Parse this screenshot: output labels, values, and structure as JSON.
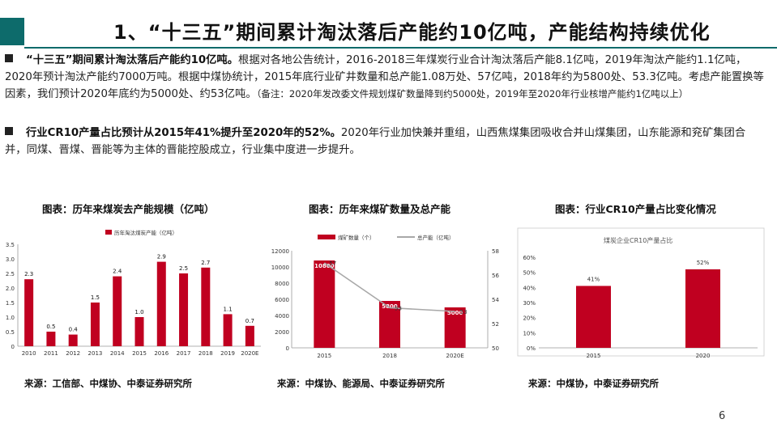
{
  "slide": {
    "title": "1、“十三五”期间累计淘汰落后产能约10亿吨，产能结构持续优化",
    "page_number": "6"
  },
  "paragraphs": [
    {
      "bold": "“十三五”期间累计淘汰落后产能约10亿吨。",
      "text": "根据对各地公告统计，2016-2018三年煤炭行业合计淘汰落后产能8.1亿吨，2019年淘汰产能约1.1亿吨，2020年预计淘汰产能约7000万吨。根据中煤协统计，2015年底行业矿井数量和总产能1.08万处、57亿吨，2018年约为5800处、53.3亿吨。考虑产能置换等因素，我们预计2020年底约为5000处、约53亿吨。",
      "note": "（备注：2020年发改委文件规划煤矿数量降到约5000处，2019年至2020年行业核增产能约1亿吨以上）"
    },
    {
      "bold": "行业CR10产量占比预计从2015年41%提升至2020年的52%。",
      "text": "2020年行业加快兼并重组，山西焦煤集团吸收合并山煤集团，山东能源和兖矿集团合并，同煤、晋煤、晋能等为主体的晋能控股成立，行业集中度进一步提升。",
      "note": ""
    }
  ],
  "charts": [
    {
      "title": "图表：历年来煤炭去产能规模（亿吨）",
      "source": "来源：工信部、中煤协、中泰证券研究所"
    },
    {
      "title": "图表：历年来煤矿数量及总产能",
      "source": "来源：中煤协、能源局、中泰证券研究所"
    },
    {
      "title": "图表：行业CR10产量占比变化情况",
      "source": "来源：中煤协，中泰证券研究所"
    }
  ],
  "chart_data": [
    {
      "type": "bar",
      "title": "",
      "legend": "历年淘汰煤炭产能（亿吨）",
      "categories": [
        "2010",
        "2011",
        "2012",
        "2013",
        "2014",
        "2015",
        "2016",
        "2017",
        "2018",
        "2019",
        "2020E"
      ],
      "values": [
        2.3,
        0.5,
        0.4,
        1.5,
        2.4,
        1.0,
        2.9,
        2.5,
        2.7,
        1.1,
        0.7
      ],
      "value_labels": [
        "2.3",
        "0.5",
        "0.4",
        "1.5",
        "2.4",
        "1.0",
        "2.9",
        "2.5",
        "2.7",
        "1.1",
        "0.7"
      ],
      "ylim": [
        0,
        3.5
      ],
      "yticks": [
        "0",
        "0.5",
        "1.0",
        "1.5",
        "2.0",
        "2.5",
        "3.0",
        "3.5"
      ],
      "color": "#c00020"
    },
    {
      "type": "bar+line",
      "title": "",
      "categories": [
        "2015",
        "2018",
        "2020E"
      ],
      "series": [
        {
          "name": "煤矿数量（个）",
          "type": "bar",
          "values": [
            10800,
            5800,
            5000
          ],
          "labels": [
            "10800",
            "5800",
            "5000"
          ],
          "axis": "left"
        },
        {
          "name": "总产能（亿吨）",
          "type": "line",
          "values": [
            57,
            53.3,
            53
          ],
          "labels": [
            "57",
            "53",
            "53"
          ],
          "axis": "right"
        }
      ],
      "ylim_left": [
        0,
        12000
      ],
      "yticks_left": [
        "0",
        "2000",
        "4000",
        "6000",
        "8000",
        "10000",
        "12000"
      ],
      "ylim_right": [
        50,
        58
      ],
      "yticks_right": [
        "50",
        "52",
        "54",
        "56",
        "58"
      ],
      "bar_color": "#c00020",
      "line_color": "#a8a8a8"
    },
    {
      "type": "bar",
      "title": "煤炭企业CR10产量占比",
      "categories": [
        "2015",
        "2020"
      ],
      "values": [
        41,
        52
      ],
      "value_labels": [
        "41%",
        "52%"
      ],
      "ylim": [
        0,
        60
      ],
      "yticks": [
        "0%",
        "10%",
        "20%",
        "30%",
        "40%",
        "50%",
        "60%"
      ],
      "color": "#c00020"
    }
  ]
}
